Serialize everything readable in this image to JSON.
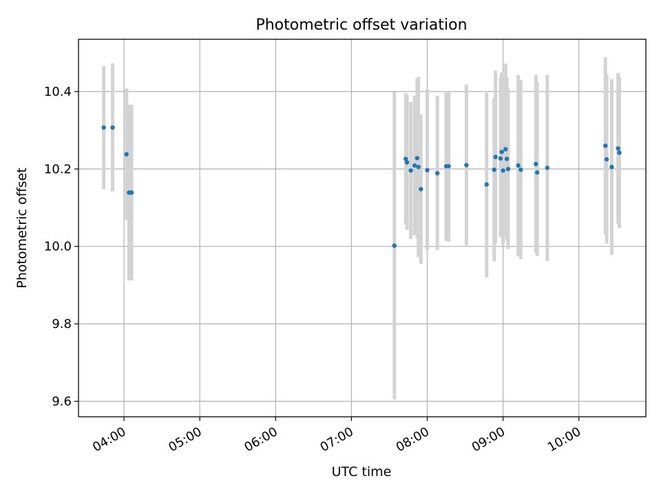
{
  "colors": {
    "point": "#1f77b4",
    "errorbar": "#d3d3d3",
    "grid": "#b0b0b0",
    "axis": "#000000"
  },
  "chart_data": {
    "type": "scatter",
    "title": "Photometric offset variation",
    "xlabel": "UTC time",
    "ylabel": "Photometric offset",
    "x_unit": "UTC time (HH:MM)",
    "xlim": [
      "03:24",
      "10:53"
    ],
    "ylim": [
      9.56,
      10.535
    ],
    "x_ticks": [
      "04:00",
      "05:00",
      "06:00",
      "07:00",
      "08:00",
      "09:00",
      "10:00"
    ],
    "y_ticks": [
      9.6,
      9.8,
      10.0,
      10.2,
      10.4
    ],
    "y_tick_labels": [
      "9.6",
      "9.8",
      "10.0",
      "10.2",
      "10.4"
    ],
    "grid": true,
    "legend": "none",
    "series": [
      {
        "points": [
          {
            "x": "03:44",
            "y": 10.307,
            "ylow": 10.148,
            "yhigh": 10.466
          },
          {
            "x": "03:51",
            "y": 10.307,
            "ylow": 10.142,
            "yhigh": 10.473
          },
          {
            "x": "04:02",
            "y": 10.238,
            "ylow": 10.068,
            "yhigh": 10.408
          },
          {
            "x": "04:04",
            "y": 10.139,
            "ylow": 9.912,
            "yhigh": 10.366
          },
          {
            "x": "04:06",
            "y": 10.139,
            "ylow": 9.912,
            "yhigh": 10.366
          },
          {
            "x": "07:34",
            "y": 10.002,
            "ylow": 9.605,
            "yhigh": 10.399
          },
          {
            "x": "07:43",
            "y": 10.226,
            "ylow": 10.056,
            "yhigh": 10.396
          },
          {
            "x": "07:44",
            "y": 10.217,
            "ylow": 10.043,
            "yhigh": 10.391
          },
          {
            "x": "07:47",
            "y": 10.196,
            "ylow": 10.019,
            "yhigh": 10.373
          },
          {
            "x": "07:50",
            "y": 10.209,
            "ylow": 10.029,
            "yhigh": 10.389
          },
          {
            "x": "07:52",
            "y": 10.228,
            "ylow": 10.022,
            "yhigh": 10.434
          },
          {
            "x": "07:53",
            "y": 10.205,
            "ylow": 9.972,
            "yhigh": 10.438
          },
          {
            "x": "07:55",
            "y": 10.148,
            "ylow": 9.955,
            "yhigh": 10.341
          },
          {
            "x": "08:00",
            "y": 10.197,
            "ylow": 9.991,
            "yhigh": 10.406
          },
          {
            "x": "08:08",
            "y": 10.189,
            "ylow": 9.991,
            "yhigh": 10.389
          },
          {
            "x": "08:15",
            "y": 10.207,
            "ylow": 10.014,
            "yhigh": 10.401
          },
          {
            "x": "08:17",
            "y": 10.207,
            "ylow": 10.012,
            "yhigh": 10.401
          },
          {
            "x": "08:31",
            "y": 10.21,
            "ylow": 10.003,
            "yhigh": 10.418
          },
          {
            "x": "08:47",
            "y": 10.16,
            "ylow": 9.92,
            "yhigh": 10.397
          },
          {
            "x": "08:53",
            "y": 10.198,
            "ylow": 9.962,
            "yhigh": 10.384
          },
          {
            "x": "08:54",
            "y": 10.231,
            "ylow": 10.008,
            "yhigh": 10.454
          },
          {
            "x": "08:58",
            "y": 10.227,
            "ylow": 10.024,
            "yhigh": 10.436
          },
          {
            "x": "08:59",
            "y": 10.244,
            "ylow": 10.037,
            "yhigh": 10.45
          },
          {
            "x": "09:00",
            "y": 10.196,
            "ylow": 10.004,
            "yhigh": 10.44
          },
          {
            "x": "09:02",
            "y": 10.251,
            "ylow": 10.029,
            "yhigh": 10.472
          },
          {
            "x": "09:03",
            "y": 10.226,
            "ylow": 10.016,
            "yhigh": 10.437
          },
          {
            "x": "09:04",
            "y": 10.2,
            "ylow": 9.993,
            "yhigh": 10.408
          },
          {
            "x": "09:12",
            "y": 10.209,
            "ylow": 9.974,
            "yhigh": 10.443
          },
          {
            "x": "09:14",
            "y": 10.198,
            "ylow": 9.967,
            "yhigh": 10.43
          },
          {
            "x": "09:26",
            "y": 10.213,
            "ylow": 9.983,
            "yhigh": 10.443
          },
          {
            "x": "09:27",
            "y": 10.191,
            "ylow": 9.976,
            "yhigh": 10.424
          },
          {
            "x": "09:35",
            "y": 10.203,
            "ylow": 9.962,
            "yhigh": 10.443
          },
          {
            "x": "10:21",
            "y": 10.26,
            "ylow": 10.031,
            "yhigh": 10.489
          },
          {
            "x": "10:22",
            "y": 10.225,
            "ylow": 10.007,
            "yhigh": 10.443
          },
          {
            "x": "10:26",
            "y": 10.205,
            "ylow": 9.978,
            "yhigh": 10.432
          },
          {
            "x": "10:31",
            "y": 10.253,
            "ylow": 10.058,
            "yhigh": 10.448
          },
          {
            "x": "10:32",
            "y": 10.242,
            "ylow": 10.047,
            "yhigh": 10.437
          }
        ]
      }
    ]
  }
}
